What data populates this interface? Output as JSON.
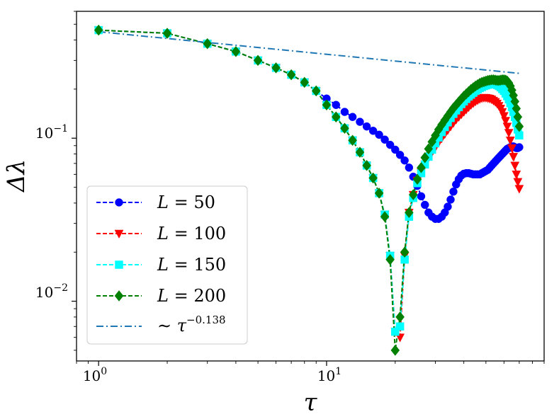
{
  "chart_data": {
    "type": "line",
    "xscale": "log",
    "yscale": "log",
    "xlim": [
      0.8,
      90
    ],
    "ylim": [
      0.0043,
      0.6
    ],
    "xlabel": "τ",
    "ylabel": "Δλ",
    "x_ticks": [
      {
        "value": 1,
        "base": "10",
        "exp": "0"
      },
      {
        "value": 10,
        "base": "10",
        "exp": "1"
      }
    ],
    "y_ticks": [
      {
        "value": 0.01,
        "base": "10",
        "exp": "−2"
      },
      {
        "value": 0.1,
        "base": "10",
        "exp": "−1"
      }
    ],
    "legend_position": "lower-left",
    "series": [
      {
        "name": "L = 50",
        "label_var": "L",
        "label_value": "= 50",
        "color": "#0000ff",
        "marker": "circle",
        "linestyle": "dashed",
        "x": [
          1,
          2,
          3,
          4,
          5,
          6,
          7,
          8,
          9,
          10,
          11,
          12,
          13,
          14,
          15,
          16,
          17,
          18,
          19,
          20,
          21,
          22,
          23,
          24,
          25,
          26,
          27,
          28,
          29,
          30,
          31,
          32,
          33,
          34,
          35,
          36,
          37,
          38,
          39,
          40,
          41,
          42,
          43,
          44,
          45,
          46,
          47,
          48,
          49,
          50,
          51,
          52,
          53,
          54,
          55,
          56,
          57,
          58,
          59,
          60,
          61,
          62,
          63,
          64,
          65,
          66,
          67,
          68,
          69,
          70
        ],
        "y": [
          0.46,
          0.44,
          0.38,
          0.34,
          0.3,
          0.27,
          0.245,
          0.22,
          0.195,
          0.175,
          0.16,
          0.145,
          0.135,
          0.126,
          0.118,
          0.111,
          0.105,
          0.098,
          0.091,
          0.085,
          0.079,
          0.073,
          0.066,
          0.058,
          0.051,
          0.044,
          0.039,
          0.035,
          0.033,
          0.032,
          0.032,
          0.033,
          0.035,
          0.038,
          0.042,
          0.047,
          0.052,
          0.056,
          0.059,
          0.0605,
          0.061,
          0.061,
          0.0605,
          0.06,
          0.06,
          0.06,
          0.06,
          0.061,
          0.062,
          0.063,
          0.064,
          0.066,
          0.068,
          0.07,
          0.072,
          0.074,
          0.076,
          0.078,
          0.08,
          0.082,
          0.084,
          0.086,
          0.087,
          0.088,
          0.089,
          0.089,
          0.088,
          0.087,
          0.087,
          0.088
        ]
      },
      {
        "name": "L = 100",
        "label_var": "L",
        "label_value": "= 100",
        "color": "#ff0000",
        "marker": "triangle-down",
        "linestyle": "dashed",
        "x": [
          1,
          2,
          3,
          4,
          5,
          6,
          7,
          8,
          9,
          10,
          11,
          12,
          13,
          14,
          15,
          16,
          17,
          18,
          19,
          20,
          21,
          22,
          23,
          24,
          25,
          26,
          27,
          28,
          29,
          30,
          31,
          32,
          33,
          34,
          35,
          36,
          37,
          38,
          39,
          40,
          41,
          42,
          43,
          44,
          45,
          46,
          47,
          48,
          49,
          50,
          51,
          52,
          53,
          54,
          55,
          56,
          57,
          58,
          59,
          60,
          61,
          62,
          63,
          64,
          65,
          66,
          67,
          68,
          69,
          70
        ],
        "y": [
          0.46,
          0.44,
          0.38,
          0.34,
          0.3,
          0.27,
          0.245,
          0.22,
          0.195,
          0.16,
          0.135,
          0.115,
          0.097,
          0.082,
          0.068,
          0.057,
          0.046,
          0.034,
          0.019,
          0.0065,
          0.006,
          0.019,
          0.035,
          0.045,
          0.055,
          0.062,
          0.069,
          0.076,
          0.082,
          0.088,
          0.094,
          0.1,
          0.106,
          0.112,
          0.118,
          0.124,
          0.13,
          0.135,
          0.14,
          0.145,
          0.15,
          0.155,
          0.16,
          0.164,
          0.168,
          0.171,
          0.174,
          0.176,
          0.177,
          0.177,
          0.176,
          0.175,
          0.173,
          0.17,
          0.167,
          0.163,
          0.158,
          0.152,
          0.145,
          0.137,
          0.128,
          0.118,
          0.108,
          0.097,
          0.087,
          0.077,
          0.068,
          0.06,
          0.054,
          0.049
        ]
      },
      {
        "name": "L = 150",
        "label_var": "L",
        "label_value": "= 150",
        "color": "#00ffff",
        "marker": "square",
        "linestyle": "dashed",
        "x": [
          1,
          2,
          3,
          4,
          5,
          6,
          7,
          8,
          9,
          10,
          11,
          12,
          13,
          14,
          15,
          16,
          17,
          18,
          19,
          20,
          21,
          22,
          23,
          24,
          25,
          26,
          27,
          28,
          29,
          30,
          31,
          32,
          33,
          34,
          35,
          36,
          37,
          38,
          39,
          40,
          41,
          42,
          43,
          44,
          45,
          46,
          47,
          48,
          49,
          50,
          51,
          52,
          53,
          54,
          55,
          56,
          57,
          58,
          59,
          60,
          61,
          62,
          63,
          64,
          65,
          66,
          67,
          68,
          69,
          70
        ],
        "y": [
          0.46,
          0.44,
          0.38,
          0.34,
          0.3,
          0.27,
          0.245,
          0.22,
          0.195,
          0.16,
          0.135,
          0.115,
          0.097,
          0.082,
          0.068,
          0.057,
          0.046,
          0.034,
          0.019,
          0.0065,
          0.007,
          0.018,
          0.033,
          0.043,
          0.053,
          0.061,
          0.069,
          0.077,
          0.085,
          0.093,
          0.101,
          0.109,
          0.117,
          0.125,
          0.133,
          0.141,
          0.148,
          0.155,
          0.162,
          0.168,
          0.174,
          0.18,
          0.185,
          0.19,
          0.195,
          0.199,
          0.203,
          0.206,
          0.209,
          0.211,
          0.213,
          0.214,
          0.215,
          0.215,
          0.214,
          0.212,
          0.209,
          0.205,
          0.2,
          0.195,
          0.188,
          0.181,
          0.173,
          0.164,
          0.155,
          0.145,
          0.135,
          0.124,
          0.113,
          0.104
        ]
      },
      {
        "name": "L = 200",
        "label_var": "L",
        "label_value": "= 200",
        "color": "#008000",
        "marker": "diamond",
        "linestyle": "dashed",
        "x": [
          1,
          2,
          3,
          4,
          5,
          6,
          7,
          8,
          9,
          10,
          11,
          12,
          13,
          14,
          15,
          16,
          17,
          18,
          19,
          20,
          21,
          22,
          23,
          24,
          25,
          26,
          27,
          28,
          29,
          30,
          31,
          32,
          33,
          34,
          35,
          36,
          37,
          38,
          39,
          40,
          41,
          42,
          43,
          44,
          45,
          46,
          47,
          48,
          49,
          50,
          51,
          52,
          53,
          54,
          55,
          56,
          57,
          58,
          59,
          60,
          61,
          62,
          63,
          64,
          65,
          66,
          67,
          68,
          69,
          70
        ],
        "y": [
          0.46,
          0.44,
          0.38,
          0.34,
          0.3,
          0.27,
          0.245,
          0.22,
          0.195,
          0.16,
          0.135,
          0.115,
          0.097,
          0.082,
          0.068,
          0.057,
          0.046,
          0.033,
          0.018,
          0.005,
          0.008,
          0.02,
          0.035,
          0.045,
          0.056,
          0.066,
          0.076,
          0.086,
          0.095,
          0.104,
          0.113,
          0.121,
          0.129,
          0.137,
          0.145,
          0.153,
          0.16,
          0.167,
          0.174,
          0.181,
          0.187,
          0.193,
          0.199,
          0.204,
          0.209,
          0.213,
          0.217,
          0.22,
          0.222,
          0.224,
          0.226,
          0.227,
          0.228,
          0.228,
          0.227,
          0.226,
          0.226,
          0.227,
          0.228,
          0.228,
          0.227,
          0.224,
          0.218,
          0.209,
          0.197,
          0.183,
          0.168,
          0.152,
          0.135,
          0.118
        ]
      },
      {
        "name": "~ τ^−0.138",
        "label_var": "∼ τ",
        "label_exp": "−0.138",
        "color": "#1f77b4",
        "marker": "none",
        "linestyle": "dashdot",
        "x": [
          1,
          70
        ],
        "y": [
          0.45,
          0.25
        ]
      }
    ]
  }
}
